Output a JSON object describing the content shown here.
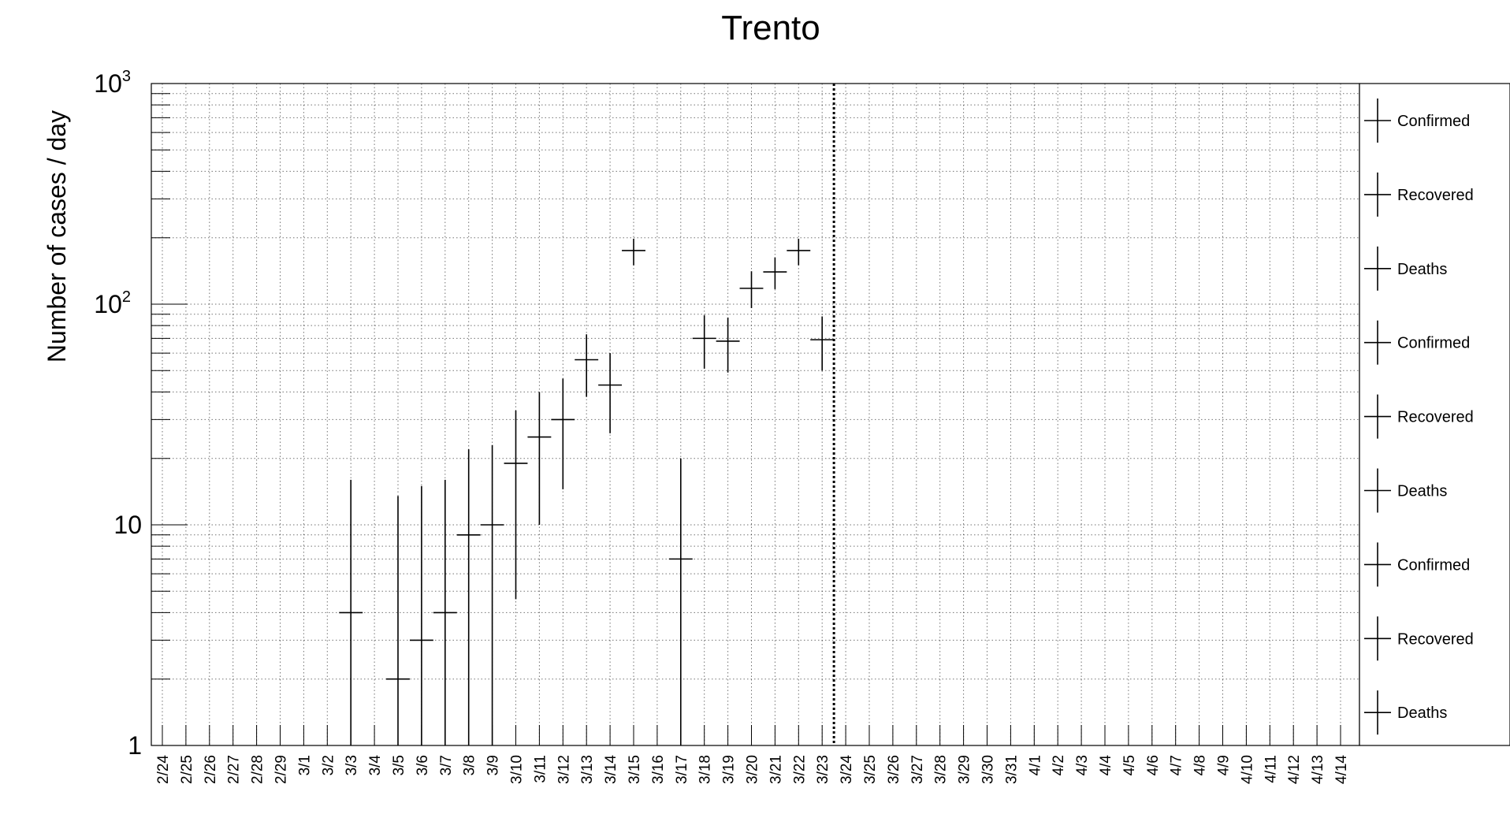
{
  "chart_data": {
    "type": "scatter",
    "title": "Trento",
    "ylabel": "Number of cases / day",
    "xlabel": "",
    "yscale": "log",
    "ylim": [
      1,
      1000
    ],
    "yticks": [
      {
        "value": 1,
        "base": "1",
        "exp": ""
      },
      {
        "value": 10,
        "base": "10",
        "exp": ""
      },
      {
        "value": 100,
        "base": "10",
        "exp": "2"
      },
      {
        "value": 1000,
        "base": "10",
        "exp": "3"
      }
    ],
    "grid": true,
    "categories": [
      "2/24",
      "2/25",
      "2/26",
      "2/27",
      "2/28",
      "2/29",
      "3/1",
      "3/2",
      "3/3",
      "3/4",
      "3/5",
      "3/6",
      "3/7",
      "3/8",
      "3/9",
      "3/10",
      "3/11",
      "3/12",
      "3/13",
      "3/14",
      "3/15",
      "3/16",
      "3/17",
      "3/18",
      "3/19",
      "3/20",
      "3/21",
      "3/22",
      "3/23",
      "3/24",
      "3/25",
      "3/26",
      "3/27",
      "3/28",
      "3/29",
      "3/30",
      "3/31",
      "4/1",
      "4/2",
      "4/3",
      "4/4",
      "4/5",
      "4/6",
      "4/7",
      "4/8",
      "4/9",
      "4/10",
      "4/11",
      "4/12",
      "4/13",
      "4/14"
    ],
    "vline": "3/23",
    "series": [
      {
        "points": [
          {
            "x": "3/3",
            "y": 4,
            "ylow": 1,
            "yhigh": 16
          },
          {
            "x": "3/5",
            "y": 2,
            "ylow": 1,
            "yhigh": 13.5
          },
          {
            "x": "3/6",
            "y": 3,
            "ylow": 1,
            "yhigh": 15
          },
          {
            "x": "3/7",
            "y": 4,
            "ylow": 1,
            "yhigh": 16
          },
          {
            "x": "3/8",
            "y": 9,
            "ylow": 1,
            "yhigh": 22
          },
          {
            "x": "3/9",
            "y": 10,
            "ylow": 1,
            "yhigh": 23
          },
          {
            "x": "3/10",
            "y": 19,
            "ylow": 4.6,
            "yhigh": 33
          },
          {
            "x": "3/11",
            "y": 25,
            "ylow": 10,
            "yhigh": 40
          },
          {
            "x": "3/12",
            "y": 30,
            "ylow": 14.5,
            "yhigh": 46
          },
          {
            "x": "3/13",
            "y": 56,
            "ylow": 38,
            "yhigh": 73
          },
          {
            "x": "3/14",
            "y": 43,
            "ylow": 26,
            "yhigh": 60
          },
          {
            "x": "3/15",
            "y": 175,
            "ylow": 150,
            "yhigh": 198
          },
          {
            "x": "3/17",
            "y": 7,
            "ylow": 1,
            "yhigh": 20
          },
          {
            "x": "3/18",
            "y": 70,
            "ylow": 51,
            "yhigh": 89
          },
          {
            "x": "3/19",
            "y": 68,
            "ylow": 49,
            "yhigh": 87
          },
          {
            "x": "3/20",
            "y": 118,
            "ylow": 96,
            "yhigh": 141
          },
          {
            "x": "3/21",
            "y": 140,
            "ylow": 117,
            "yhigh": 163
          },
          {
            "x": "3/22",
            "y": 175,
            "ylow": 150,
            "yhigh": 198
          },
          {
            "x": "3/23",
            "y": 69,
            "ylow": 50,
            "yhigh": 88
          }
        ]
      }
    ],
    "legend": {
      "placement": "right",
      "entries": [
        "Confirmed",
        "Recovered",
        "Deaths",
        "Confirmed",
        "Recovered",
        "Deaths",
        "Confirmed",
        "Recovered",
        "Deaths"
      ]
    }
  }
}
